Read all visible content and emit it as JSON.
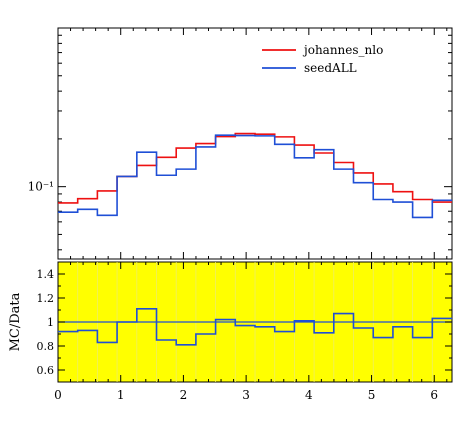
{
  "colors": {
    "johannes_nlo": "#ee1111",
    "seedALL": "#1f4fd6",
    "ratio_background": "#ffff00",
    "reference_line": "#1f4fd6"
  },
  "chart_data": [
    {
      "type": "line",
      "drawstyle": "step",
      "yscale": "log",
      "bin_edges": [
        0,
        0.314,
        0.628,
        0.942,
        1.257,
        1.571,
        1.885,
        2.199,
        2.513,
        2.827,
        3.142,
        3.456,
        3.77,
        4.084,
        4.398,
        4.712,
        5.027,
        5.341,
        5.655,
        5.969,
        6.283
      ],
      "xlim": [
        0,
        6.283
      ],
      "ylim": [
        0.035,
        1.0
      ],
      "ytick_labels": [
        {
          "value": 0.1,
          "label": "10⁻¹"
        }
      ],
      "legend_position": "top-right",
      "series": [
        {
          "name": "johannes_nlo",
          "color_key": "johannes_nlo",
          "values": [
            0.079,
            0.084,
            0.094,
            0.116,
            0.136,
            0.153,
            0.175,
            0.187,
            0.207,
            0.216,
            0.214,
            0.206,
            0.183,
            0.163,
            0.142,
            0.122,
            0.104,
            0.093,
            0.083,
            0.08
          ]
        },
        {
          "name": "seedALL",
          "color_key": "seedALL",
          "values": [
            0.069,
            0.072,
            0.066,
            0.116,
            0.165,
            0.118,
            0.129,
            0.178,
            0.211,
            0.21,
            0.209,
            0.185,
            0.152,
            0.171,
            0.129,
            0.106,
            0.083,
            0.08,
            0.064,
            0.082
          ]
        }
      ]
    },
    {
      "type": "line",
      "drawstyle": "step",
      "ylabel": "MC/Data",
      "bin_edges": [
        0,
        0.314,
        0.628,
        0.942,
        1.257,
        1.571,
        1.885,
        2.199,
        2.513,
        2.827,
        3.142,
        3.456,
        3.77,
        4.084,
        4.398,
        4.712,
        5.027,
        5.341,
        5.655,
        5.969,
        6.283
      ],
      "xlim": [
        0,
        6.283
      ],
      "ylim": [
        0.5,
        1.5
      ],
      "yticks": [
        0.6,
        0.8,
        1.0,
        1.2,
        1.4
      ],
      "ytick_labels": [
        "0.6",
        "0.8",
        "1",
        "1.2",
        "1.4"
      ],
      "xticks": [
        0,
        1,
        2,
        3,
        4,
        5,
        6
      ],
      "xtick_labels": [
        "0",
        "1",
        "2",
        "3",
        "4",
        "5",
        "6"
      ],
      "reference_value": 1.0,
      "series": [
        {
          "color_key": "seedALL",
          "values": [
            0.92,
            0.93,
            0.83,
            1.0,
            1.11,
            0.85,
            0.81,
            0.9,
            1.02,
            0.97,
            0.96,
            0.92,
            1.01,
            0.91,
            1.07,
            0.95,
            0.87,
            0.96,
            0.87,
            1.03
          ]
        }
      ]
    }
  ]
}
